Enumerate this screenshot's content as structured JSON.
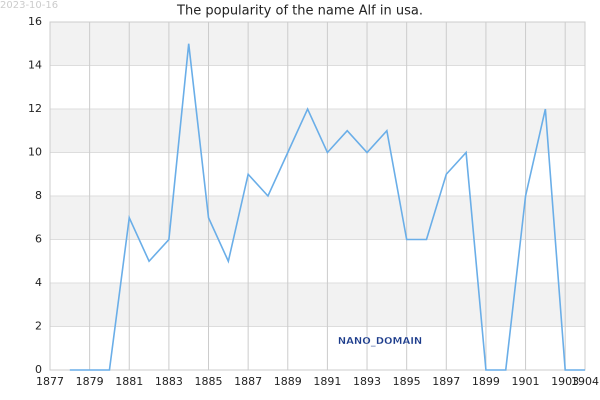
{
  "chart_data": {
    "type": "line",
    "title": "The popularity of the name Alf in usa.",
    "date_label": "2023-10-16",
    "watermark": "NANO_DOMAIN",
    "x": [
      1878,
      1879,
      1880,
      1881,
      1882,
      1883,
      1884,
      1885,
      1886,
      1887,
      1888,
      1889,
      1890,
      1891,
      1892,
      1893,
      1894,
      1895,
      1896,
      1897,
      1898,
      1899,
      1900,
      1901,
      1902,
      1903,
      1904
    ],
    "values": [
      0,
      0,
      0,
      7,
      5,
      6,
      15,
      7,
      5,
      9,
      8,
      10,
      12,
      10,
      11,
      10,
      11,
      6,
      6,
      9,
      10,
      0,
      0,
      8,
      12,
      0,
      0
    ],
    "color": "#6aaee8",
    "xlim": [
      1877,
      1904
    ],
    "xticks": [
      1877,
      1879,
      1881,
      1883,
      1885,
      1887,
      1889,
      1891,
      1893,
      1895,
      1897,
      1899,
      1901,
      1903,
      1904
    ],
    "ylim": [
      0,
      16
    ],
    "yticks": [
      0,
      2,
      4,
      6,
      8,
      10,
      12,
      14,
      16
    ],
    "grid": true
  }
}
